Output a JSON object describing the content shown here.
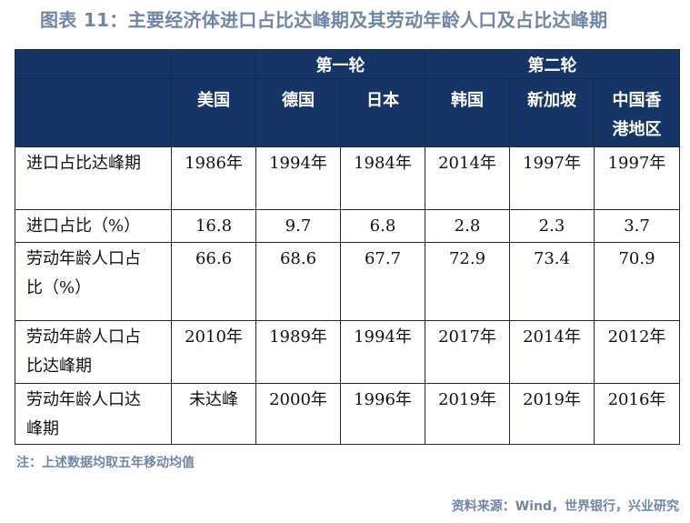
{
  "title": "图表 11：主要经济体进口占比达峰期及其劳动年龄人口及占比达峰期",
  "groups": {
    "first": "第一轮",
    "second": "第二轮"
  },
  "countries": [
    "美国",
    "德国",
    "日本",
    "韩国",
    "新加坡",
    "中国香港地区"
  ],
  "rows": [
    {
      "label": "进口占比达峰期",
      "values": [
        "1986年",
        "1994年",
        "1984年",
        "2014年",
        "1997年",
        "1997年"
      ]
    },
    {
      "label": "进口占比（%）",
      "values": [
        "16.8",
        "9.7",
        "6.8",
        "2.8",
        "2.3",
        "3.7"
      ]
    },
    {
      "label": "劳动年龄人口占比（%）",
      "values": [
        "66.6",
        "68.6",
        "67.7",
        "72.9",
        "73.4",
        "70.9"
      ]
    },
    {
      "label": "劳动年龄人口占比达峰期",
      "values": [
        "2010年",
        "1989年",
        "1994年",
        "2017年",
        "2014年",
        "2012年"
      ]
    },
    {
      "label": "劳动年龄人口达峰期",
      "values": [
        "未达峰",
        "2000年",
        "1996年",
        "2019年",
        "2019年",
        "2016年"
      ]
    }
  ],
  "note": "注：上述数据均取五年移动均值",
  "source": "资料来源：Wind，世界银行，兴业研究",
  "colors": {
    "header_bg": "#143566",
    "accent_text": "#6f86a8"
  }
}
